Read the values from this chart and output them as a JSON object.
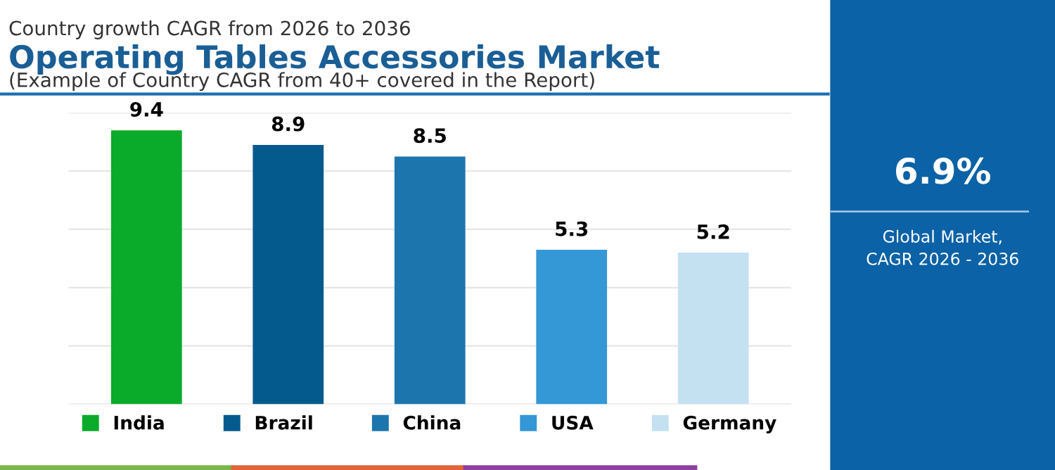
{
  "chart_data": [
    {
      "type": "bar",
      "title": "Operating Tables Accessories Market",
      "subtitle": "(Example of Country CAGR from 40+ covered in the Report)",
      "annotations": [
        "Country growth CAGR from 2026 to 2036"
      ],
      "categories": [
        "India",
        "Brazil",
        "China",
        "USA",
        "Germany"
      ],
      "values": [
        9.4,
        8.9,
        8.5,
        5.3,
        5.2
      ],
      "colors": [
        "#0aab2a",
        "#045a8d",
        "#1c75ad",
        "#3497d6",
        "#c4e1f2"
      ],
      "ylim": [
        0,
        10
      ],
      "yticks": [
        {
          "value": 0,
          "label": null
        },
        {
          "value": 2,
          "label": null
        },
        {
          "value": 4,
          "label": null
        },
        {
          "value": 6,
          "label": null
        },
        {
          "value": 8,
          "label": null
        },
        {
          "value": 10,
          "label": null
        }
      ],
      "tick_labels": false,
      "grid": "y",
      "data_labels": true
    },
    {
      "type": "other",
      "title": "6.9%",
      "subtitle": "Global Market,\nCAGR 2026 - 2036"
    }
  ]
}
